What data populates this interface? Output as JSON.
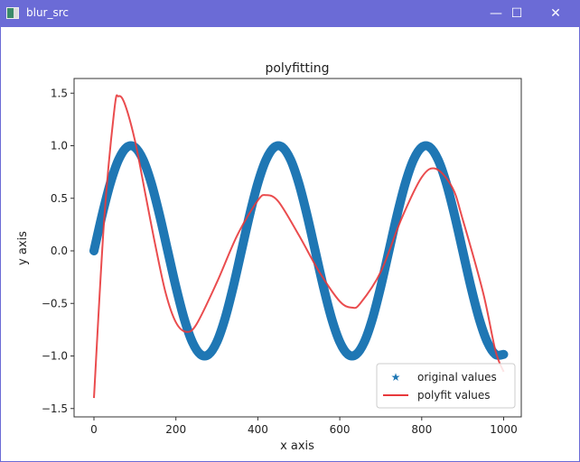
{
  "window": {
    "title": "blur_src",
    "minimize": "—",
    "maximize": "☐",
    "close": "✕"
  },
  "chart_data": {
    "type": "line",
    "title": "polyfitting",
    "xlabel": "x axis",
    "ylabel": "y axis",
    "xlim": [
      -50,
      1050
    ],
    "ylim": [
      -1.55,
      1.65
    ],
    "xticks": [
      "0",
      "200",
      "400",
      "600",
      "800",
      "1000"
    ],
    "yticks": [
      "1.5",
      "1.0",
      "0.5",
      "0.0",
      "−0.5",
      "−1.0",
      "−1.5"
    ],
    "legend_position": "lower-right",
    "series": [
      {
        "name": "original values",
        "style": "star-markers",
        "color": "#1f77b4",
        "x": [
          0,
          20,
          40,
          60,
          80,
          100,
          120,
          140,
          160,
          180,
          200,
          220,
          240,
          260,
          280,
          300,
          320,
          340,
          360,
          380,
          400,
          420,
          440,
          460,
          480,
          500,
          520,
          540,
          560,
          580,
          600,
          620,
          640,
          660,
          680,
          700,
          720,
          740,
          760,
          780,
          800,
          820,
          840,
          860,
          880,
          900,
          920,
          940,
          960,
          980,
          1000
        ],
        "y": [
          0,
          0.342,
          0.643,
          0.866,
          0.985,
          0.985,
          0.866,
          0.643,
          0.342,
          0,
          -0.342,
          -0.643,
          -0.866,
          -0.985,
          -0.985,
          -0.866,
          -0.643,
          -0.342,
          0,
          0.342,
          0.643,
          0.866,
          0.985,
          0.985,
          0.866,
          0.643,
          0.342,
          0,
          -0.342,
          -0.643,
          -0.866,
          -0.985,
          -0.985,
          -0.866,
          -0.643,
          -0.342,
          0,
          0.342,
          0.643,
          0.866,
          0.985,
          0.985,
          0.866,
          0.643,
          0.342,
          0,
          -0.342,
          -0.643,
          -0.866,
          -0.985,
          -0.985
        ]
      },
      {
        "name": "polyfit values",
        "style": "line",
        "color": "#e8393b",
        "x": [
          0,
          25,
          50,
          60,
          75,
          100,
          125,
          150,
          175,
          200,
          225,
          250,
          300,
          350,
          400,
          420,
          450,
          500,
          550,
          600,
          630,
          650,
          700,
          750,
          800,
          835,
          875,
          900,
          950,
          980,
          1000
        ],
        "y": [
          -1.4,
          0.3,
          1.35,
          1.47,
          1.4,
          1.05,
          0.55,
          0.05,
          -0.4,
          -0.68,
          -0.77,
          -0.7,
          -0.3,
          0.15,
          0.48,
          0.53,
          0.47,
          0.15,
          -0.2,
          -0.48,
          -0.54,
          -0.5,
          -0.2,
          0.3,
          0.7,
          0.78,
          0.6,
          0.3,
          -0.4,
          -0.95,
          -1.15
        ]
      }
    ]
  }
}
